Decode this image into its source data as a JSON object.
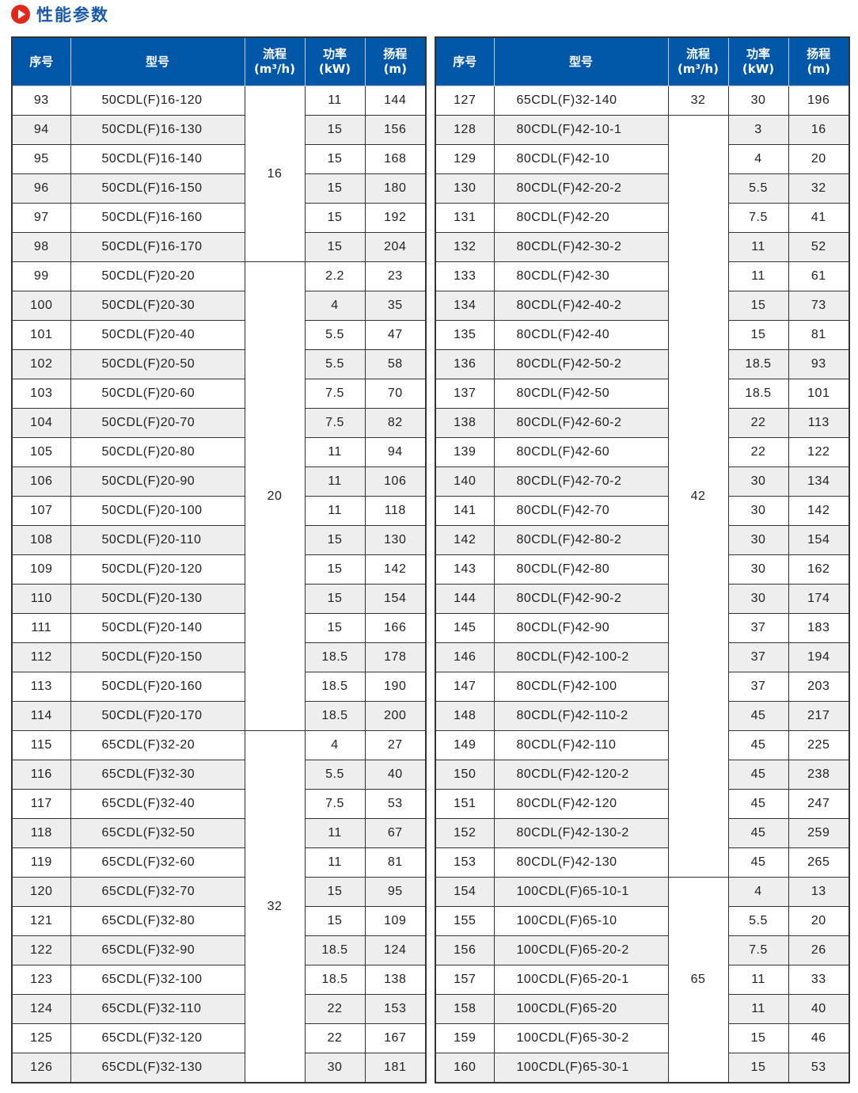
{
  "title": "性能参数",
  "headers": {
    "no": "序号",
    "model": "型号",
    "flow": "流程",
    "flow_unit": "(m³/h)",
    "power": "功率",
    "power_unit": "(kW)",
    "head": "扬程",
    "head_unit": "(m)"
  },
  "tables": [
    {
      "groups": [
        {
          "flow": "16",
          "rows": [
            [
              "93",
              "50CDL(F)16-120",
              "11",
              "144"
            ],
            [
              "94",
              "50CDL(F)16-130",
              "15",
              "156"
            ],
            [
              "95",
              "50CDL(F)16-140",
              "15",
              "168"
            ],
            [
              "96",
              "50CDL(F)16-150",
              "15",
              "180"
            ],
            [
              "97",
              "50CDL(F)16-160",
              "15",
              "192"
            ],
            [
              "98",
              "50CDL(F)16-170",
              "15",
              "204"
            ]
          ]
        },
        {
          "flow": "20",
          "rows": [
            [
              "99",
              "50CDL(F)20-20",
              "2.2",
              "23"
            ],
            [
              "100",
              "50CDL(F)20-30",
              "4",
              "35"
            ],
            [
              "101",
              "50CDL(F)20-40",
              "5.5",
              "47"
            ],
            [
              "102",
              "50CDL(F)20-50",
              "5.5",
              "58"
            ],
            [
              "103",
              "50CDL(F)20-60",
              "7.5",
              "70"
            ],
            [
              "104",
              "50CDL(F)20-70",
              "7.5",
              "82"
            ],
            [
              "105",
              "50CDL(F)20-80",
              "11",
              "94"
            ],
            [
              "106",
              "50CDL(F)20-90",
              "11",
              "106"
            ],
            [
              "107",
              "50CDL(F)20-100",
              "11",
              "118"
            ],
            [
              "108",
              "50CDL(F)20-110",
              "15",
              "130"
            ],
            [
              "109",
              "50CDL(F)20-120",
              "15",
              "142"
            ],
            [
              "110",
              "50CDL(F)20-130",
              "15",
              "154"
            ],
            [
              "111",
              "50CDL(F)20-140",
              "15",
              "166"
            ],
            [
              "112",
              "50CDL(F)20-150",
              "18.5",
              "178"
            ],
            [
              "113",
              "50CDL(F)20-160",
              "18.5",
              "190"
            ],
            [
              "114",
              "50CDL(F)20-170",
              "18.5",
              "200"
            ]
          ]
        },
        {
          "flow": "32",
          "rows": [
            [
              "115",
              "65CDL(F)32-20",
              "4",
              "27"
            ],
            [
              "116",
              "65CDL(F)32-30",
              "5.5",
              "40"
            ],
            [
              "117",
              "65CDL(F)32-40",
              "7.5",
              "53"
            ],
            [
              "118",
              "65CDL(F)32-50",
              "11",
              "67"
            ],
            [
              "119",
              "65CDL(F)32-60",
              "11",
              "81"
            ],
            [
              "120",
              "65CDL(F)32-70",
              "15",
              "95"
            ],
            [
              "121",
              "65CDL(F)32-80",
              "15",
              "109"
            ],
            [
              "122",
              "65CDL(F)32-90",
              "18.5",
              "124"
            ],
            [
              "123",
              "65CDL(F)32-100",
              "18.5",
              "138"
            ],
            [
              "124",
              "65CDL(F)32-110",
              "22",
              "153"
            ],
            [
              "125",
              "65CDL(F)32-120",
              "22",
              "167"
            ],
            [
              "126",
              "65CDL(F)32-130",
              "30",
              "181"
            ]
          ]
        }
      ]
    },
    {
      "groups": [
        {
          "flow": "32",
          "rows": [
            [
              "127",
              "65CDL(F)32-140",
              "30",
              "196"
            ]
          ]
        },
        {
          "flow": "42",
          "rows": [
            [
              "128",
              "80CDL(F)42-10-1",
              "3",
              "16"
            ],
            [
              "129",
              "80CDL(F)42-10",
              "4",
              "20"
            ],
            [
              "130",
              "80CDL(F)42-20-2",
              "5.5",
              "32"
            ],
            [
              "131",
              "80CDL(F)42-20",
              "7.5",
              "41"
            ],
            [
              "132",
              "80CDL(F)42-30-2",
              "11",
              "52"
            ],
            [
              "133",
              "80CDL(F)42-30",
              "11",
              "61"
            ],
            [
              "134",
              "80CDL(F)42-40-2",
              "15",
              "73"
            ],
            [
              "135",
              "80CDL(F)42-40",
              "15",
              "81"
            ],
            [
              "136",
              "80CDL(F)42-50-2",
              "18.5",
              "93"
            ],
            [
              "137",
              "80CDL(F)42-50",
              "18.5",
              "101"
            ],
            [
              "138",
              "80CDL(F)42-60-2",
              "22",
              "113"
            ],
            [
              "139",
              "80CDL(F)42-60",
              "22",
              "122"
            ],
            [
              "140",
              "80CDL(F)42-70-2",
              "30",
              "134"
            ],
            [
              "141",
              "80CDL(F)42-70",
              "30",
              "142"
            ],
            [
              "142",
              "80CDL(F)42-80-2",
              "30",
              "154"
            ],
            [
              "143",
              "80CDL(F)42-80",
              "30",
              "162"
            ],
            [
              "144",
              "80CDL(F)42-90-2",
              "30",
              "174"
            ],
            [
              "145",
              "80CDL(F)42-90",
              "37",
              "183"
            ],
            [
              "146",
              "80CDL(F)42-100-2",
              "37",
              "194"
            ],
            [
              "147",
              "80CDL(F)42-100",
              "37",
              "203"
            ],
            [
              "148",
              "80CDL(F)42-110-2",
              "45",
              "217"
            ],
            [
              "149",
              "80CDL(F)42-110",
              "45",
              "225"
            ],
            [
              "150",
              "80CDL(F)42-120-2",
              "45",
              "238"
            ],
            [
              "151",
              "80CDL(F)42-120",
              "45",
              "247"
            ],
            [
              "152",
              "80CDL(F)42-130-2",
              "45",
              "259"
            ],
            [
              "153",
              "80CDL(F)42-130",
              "45",
              "265"
            ]
          ]
        },
        {
          "flow": "65",
          "rows": [
            [
              "154",
              "100CDL(F)65-10-1",
              "4",
              "13"
            ],
            [
              "155",
              "100CDL(F)65-10",
              "5.5",
              "20"
            ],
            [
              "156",
              "100CDL(F)65-20-2",
              "7.5",
              "26"
            ],
            [
              "157",
              "100CDL(F)65-20-1",
              "11",
              "33"
            ],
            [
              "158",
              "100CDL(F)65-20",
              "11",
              "40"
            ],
            [
              "159",
              "100CDL(F)65-30-2",
              "15",
              "46"
            ],
            [
              "160",
              "100CDL(F)65-30-1",
              "15",
              "53"
            ]
          ]
        }
      ]
    }
  ]
}
